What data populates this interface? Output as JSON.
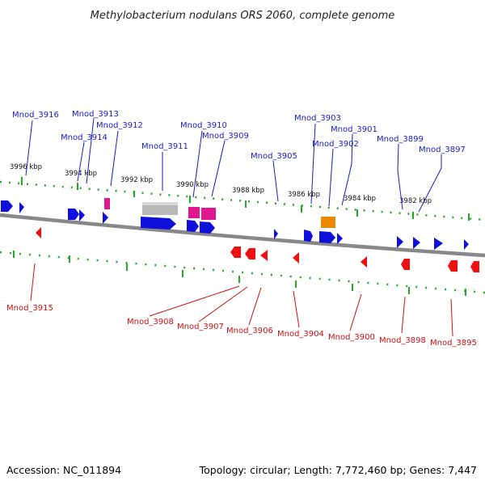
{
  "title": "Methylobacterium nodulans ORS 2060, complete genome",
  "accession": "Accession: NC_011894",
  "topology": "Topology: circular; Length: 7,772,460 bp; Genes: 7,447",
  "colors": {
    "forward_cds": "#1010dd",
    "reverse_cds": "#ee1111",
    "rna_magenta": "#e01890",
    "pseudo_grey": "#b8b8b8",
    "orange_feature": "#ee8800",
    "tick": "#22aa22",
    "backbone": "#888888",
    "label_forward": "#1a1ac8",
    "label_reverse": "#cc1111"
  },
  "kbp_labels": [
    "3996 kbp",
    "3994 kbp",
    "3992 kbp",
    "3990 kbp",
    "3988 kbp",
    "3986 kbp",
    "3984 kbp",
    "3982 kbp"
  ],
  "top_labels": [
    "Mnod_3916",
    "Mnod_3913",
    "Mnod_3912",
    "Mnod_3914",
    "Mnod_3911",
    "Mnod_3910",
    "Mnod_3909",
    "Mnod_3905",
    "Mnod_3903",
    "Mnod_3901",
    "Mnod_3902",
    "Mnod_3899",
    "Mnod_3897"
  ],
  "bottom_labels": [
    "Mnod_3915",
    "Mnod_3908",
    "Mnod_3907",
    "Mnod_3906",
    "Mnod_3904",
    "Mnod_3900",
    "Mnod_3898",
    "Mnod_3895"
  ]
}
